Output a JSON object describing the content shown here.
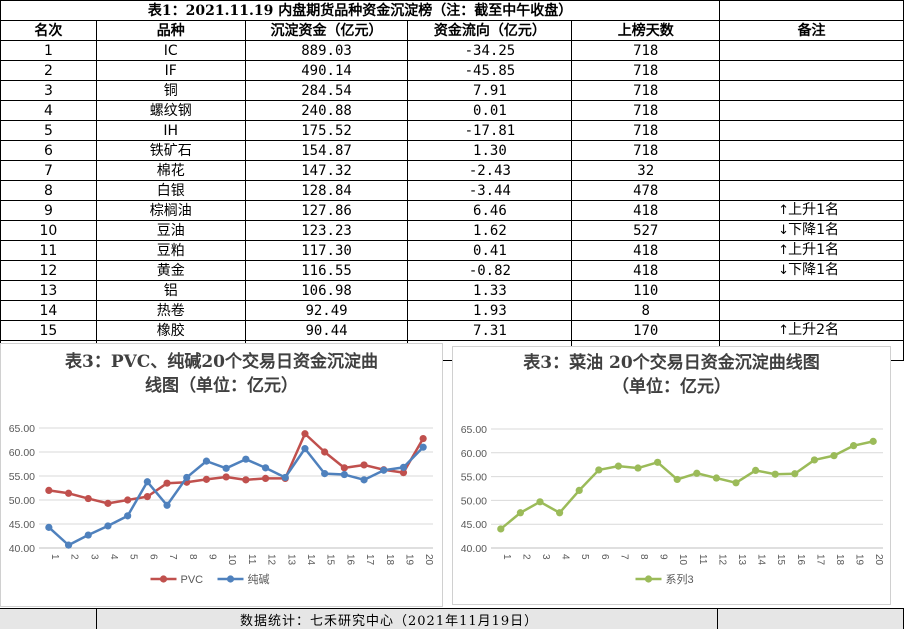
{
  "table": {
    "title": "表1：2021.11.19 内盘期货品种资金沉淀榜（注：截至中午收盘）",
    "headers": [
      "名次",
      "品种",
      "沉淀资金（亿元）",
      "资金流向（亿元）",
      "上榜天数",
      "备注"
    ],
    "rows": [
      {
        "rank": "1",
        "name": "IC",
        "capital": "889.03",
        "flow": "-34.25",
        "days": "718",
        "arrow": "",
        "note": ""
      },
      {
        "rank": "2",
        "name": "IF",
        "capital": "490.14",
        "flow": "-45.85",
        "days": "718",
        "arrow": "",
        "note": ""
      },
      {
        "rank": "3",
        "name": "铜",
        "capital": "284.54",
        "flow": "7.91",
        "days": "718",
        "arrow": "",
        "note": ""
      },
      {
        "rank": "4",
        "name": "螺纹钢",
        "capital": "240.88",
        "flow": "0.01",
        "days": "718",
        "arrow": "",
        "note": ""
      },
      {
        "rank": "5",
        "name": "IH",
        "capital": "175.52",
        "flow": "-17.81",
        "days": "718",
        "arrow": "",
        "note": ""
      },
      {
        "rank": "6",
        "name": "铁矿石",
        "capital": "154.87",
        "flow": "1.30",
        "days": "718",
        "arrow": "",
        "note": ""
      },
      {
        "rank": "7",
        "name": "棉花",
        "capital": "147.32",
        "flow": "-2.43",
        "days": "32",
        "arrow": "",
        "note": ""
      },
      {
        "rank": "8",
        "name": "白银",
        "capital": "128.84",
        "flow": "-3.44",
        "days": "478",
        "arrow": "",
        "note": ""
      },
      {
        "rank": "9",
        "name": "棕榈油",
        "capital": "127.86",
        "flow": "6.46",
        "days": "418",
        "arrow": "↑",
        "note": "上升1名"
      },
      {
        "rank": "10",
        "name": "豆油",
        "capital": "123.23",
        "flow": "1.62",
        "days": "527",
        "arrow": "↓",
        "note": "下降1名"
      },
      {
        "rank": "11",
        "name": "豆粕",
        "capital": "117.30",
        "flow": "0.41",
        "days": "418",
        "arrow": "↑",
        "note": "上升1名"
      },
      {
        "rank": "12",
        "name": "黄金",
        "capital": "116.55",
        "flow": "-0.82",
        "days": "418",
        "arrow": "↓",
        "note": "下降1名"
      },
      {
        "rank": "13",
        "name": "铝",
        "capital": "106.98",
        "flow": "1.33",
        "days": "110",
        "arrow": "",
        "note": ""
      },
      {
        "rank": "14",
        "name": "热卷",
        "capital": "92.49",
        "flow": "1.93",
        "days": "8",
        "arrow": "",
        "note": ""
      },
      {
        "rank": "15",
        "name": "橡胶",
        "capital": "90.44",
        "flow": "7.31",
        "days": "170",
        "arrow": "↑",
        "note": "上升2名"
      }
    ]
  },
  "chart_data": [
    {
      "type": "line",
      "title": "表3：PVC、纯碱20个交易日资金沉淀曲线图（单位：亿元）",
      "title_lines": [
        "表3：PVC、纯碱20个交易日资金沉淀曲",
        "线图（单位：亿元）"
      ],
      "x": [
        "1",
        "2",
        "3",
        "4",
        "5",
        "6",
        "7",
        "8",
        "9",
        "10",
        "11",
        "12",
        "13",
        "14",
        "15",
        "16",
        "17",
        "18",
        "19",
        "20"
      ],
      "ylim": [
        40,
        65
      ],
      "yticks": [
        "40.00",
        "45.00",
        "50.00",
        "55.00",
        "60.00",
        "65.00"
      ],
      "grid": true,
      "legend": "bottom",
      "series": [
        {
          "name": "PVC",
          "color": "#c0504d",
          "values": [
            52.0,
            51.4,
            50.3,
            49.3,
            50.0,
            50.7,
            53.5,
            53.7,
            54.3,
            54.8,
            54.2,
            54.5,
            54.5,
            63.8,
            60.0,
            56.7,
            57.3,
            56.3,
            55.7,
            62.8
          ]
        },
        {
          "name": "纯碱",
          "color": "#4f81bd",
          "values": [
            44.3,
            40.6,
            42.7,
            44.6,
            46.7,
            53.8,
            48.9,
            54.7,
            58.1,
            56.6,
            58.5,
            56.7,
            54.7,
            60.7,
            55.5,
            55.3,
            54.2,
            56.2,
            56.8,
            61.0
          ]
        }
      ]
    },
    {
      "type": "line",
      "title": "表3：菜油 20个交易日资金沉淀曲线图（单位：亿元）",
      "title_lines": [
        "表3：菜油 20个交易日资金沉淀曲线图",
        "（单位：亿元）"
      ],
      "x": [
        "1",
        "2",
        "3",
        "4",
        "5",
        "6",
        "7",
        "8",
        "9",
        "10",
        "11",
        "12",
        "13",
        "14",
        "15",
        "16",
        "17",
        "18",
        "19",
        "20"
      ],
      "ylim": [
        40,
        65
      ],
      "yticks": [
        "40.00",
        "45.00",
        "50.00",
        "55.00",
        "60.00",
        "65.00"
      ],
      "grid": true,
      "legend": "bottom",
      "series": [
        {
          "name": "系列3",
          "color": "#9bbb59",
          "values": [
            44.0,
            47.4,
            49.7,
            47.4,
            52.1,
            56.4,
            57.2,
            56.8,
            58.0,
            54.4,
            55.7,
            54.7,
            53.7,
            56.3,
            55.5,
            55.6,
            58.5,
            59.4,
            61.5,
            62.4
          ]
        }
      ]
    }
  ],
  "footer": {
    "text": "数据统计：七禾研究中心（2021年11月19日）"
  }
}
